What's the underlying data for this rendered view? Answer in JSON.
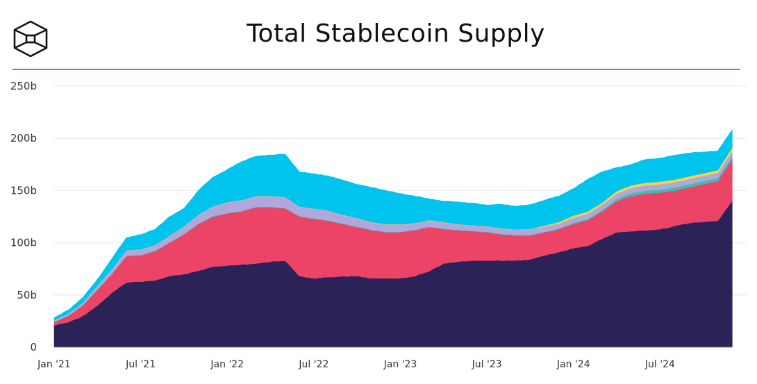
{
  "header": {
    "logo": "the-block-cube-logo",
    "title": "Total Stablecoin Supply",
    "divider_color": "#c04cf0"
  },
  "chart_data": {
    "type": "area",
    "stacked": true,
    "title": "Total Stablecoin Supply",
    "xlabel": "",
    "ylabel": "",
    "grid": true,
    "legend": "none",
    "x_start": "2021-01",
    "x_step": "month",
    "x": [
      "2021-01",
      "2021-02",
      "2021-03",
      "2021-04",
      "2021-05",
      "2021-06",
      "2021-07",
      "2021-08",
      "2021-09",
      "2021-10",
      "2021-11",
      "2021-12",
      "2022-01",
      "2022-02",
      "2022-03",
      "2022-04",
      "2022-05",
      "2022-06",
      "2022-07",
      "2022-08",
      "2022-09",
      "2022-10",
      "2022-11",
      "2022-12",
      "2023-01",
      "2023-02",
      "2023-03",
      "2023-04",
      "2023-05",
      "2023-06",
      "2023-07",
      "2023-08",
      "2023-09",
      "2023-10",
      "2023-11",
      "2023-12",
      "2024-01",
      "2024-02",
      "2024-03",
      "2024-04",
      "2024-05",
      "2024-06",
      "2024-07",
      "2024-08",
      "2024-09",
      "2024-10",
      "2024-11",
      "2024-12"
    ],
    "ylim": [
      0,
      250
    ],
    "yticks": [
      {
        "value": 0,
        "label": "0"
      },
      {
        "value": 50,
        "label": "50b"
      },
      {
        "value": 100,
        "label": "100b"
      },
      {
        "value": 150,
        "label": "150b"
      },
      {
        "value": 200,
        "label": "200b"
      },
      {
        "value": 250,
        "label": "250b"
      }
    ],
    "xticks": [
      {
        "index": 0,
        "label": "Jan '21"
      },
      {
        "index": 6,
        "label": "Jul '21"
      },
      {
        "index": 12,
        "label": "Jan '22"
      },
      {
        "index": 18,
        "label": "Jul '22"
      },
      {
        "index": 24,
        "label": "Jan '23"
      },
      {
        "index": 30,
        "label": "Jul '23"
      },
      {
        "index": 36,
        "label": "Jan '24"
      },
      {
        "index": 42,
        "label": "Jul '24"
      }
    ],
    "units": "billions USD",
    "series": [
      {
        "color": "#2b2358",
        "values": [
          21,
          24,
          30,
          40,
          52,
          62,
          63,
          64,
          68,
          70,
          73,
          77,
          78,
          79,
          80,
          82,
          83,
          68,
          66,
          67,
          68,
          68,
          66,
          66,
          66,
          68,
          73,
          80,
          82,
          83,
          83,
          83,
          83,
          84,
          88,
          91,
          95,
          97,
          104,
          110,
          111,
          112,
          113,
          116,
          119,
          120,
          121,
          140
        ]
      },
      {
        "color": "#ec4466",
        "values": [
          3,
          6,
          10,
          15,
          18,
          25,
          25,
          28,
          32,
          38,
          45,
          48,
          50,
          51,
          54,
          52,
          50,
          57,
          57,
          54,
          50,
          47,
          46,
          44,
          44,
          44,
          42,
          33,
          30,
          28,
          27,
          25,
          24,
          23,
          22,
          22,
          23,
          25,
          26,
          30,
          34,
          35,
          35,
          34,
          34,
          36,
          38,
          40
        ]
      },
      {
        "color": "#3fbfae",
        "values": [
          0.5,
          0.5,
          0.5,
          0.5,
          0.5,
          0.5,
          0.5,
          0.5,
          0.5,
          0.5,
          0.5,
          0.5,
          0.5,
          0.5,
          0.5,
          0.5,
          0.5,
          0.5,
          0.5,
          0.5,
          0.5,
          0.5,
          0.5,
          0.5,
          0.5,
          0.5,
          0.5,
          0.5,
          0.5,
          0.5,
          0.5,
          0.5,
          0.5,
          0.5,
          0.5,
          0.5,
          1,
          1,
          1.5,
          2,
          2.5,
          3,
          3,
          3,
          3,
          3,
          3,
          3
        ]
      },
      {
        "color": "#b0a8dc",
        "values": [
          1,
          1.5,
          2,
          3,
          4,
          5,
          5,
          5,
          6,
          7,
          8,
          9,
          10,
          10,
          10,
          10,
          10,
          9,
          9,
          9,
          8,
          8,
          7,
          7,
          7,
          6,
          6,
          6,
          5,
          5,
          5,
          5,
          5,
          5,
          5,
          5,
          5,
          5,
          5,
          5,
          5,
          5,
          5,
          5,
          5,
          5,
          5,
          5
        ]
      },
      {
        "color": "#f5d442",
        "values": [
          0.3,
          0.3,
          0.3,
          0.3,
          0.3,
          0.3,
          0.3,
          0.3,
          0.3,
          0.3,
          0.3,
          0.3,
          0.3,
          0.3,
          0.3,
          0.3,
          0.3,
          0.3,
          0.3,
          0.3,
          0.3,
          0.3,
          0.3,
          0.3,
          0.3,
          0.3,
          0.3,
          0.3,
          0.3,
          0.3,
          0.3,
          0.3,
          0.3,
          0.5,
          1,
          1.5,
          2,
          2,
          2,
          2.5,
          2.5,
          2.5,
          2.5,
          2.5,
          2.5,
          2.5,
          2.5,
          3
        ]
      },
      {
        "color": "#00c3ee",
        "values": [
          2.2,
          3.7,
          5.2,
          6.2,
          10.2,
          12.2,
          14.2,
          15.2,
          18.2,
          17.2,
          23.2,
          28.2,
          31.2,
          37.2,
          38.2,
          39.2,
          41.2,
          33.2,
          33.2,
          33.2,
          33.2,
          32.2,
          33.2,
          32.2,
          29.2,
          26.2,
          20.2,
          20.2,
          21.2,
          21.2,
          20.2,
          23.2,
          22.2,
          23.5,
          24.5,
          25,
          26,
          31,
          29.5,
          22.5,
          20,
          22.5,
          22.5,
          23.5,
          22.5,
          20.5,
          18.5,
          17
        ]
      }
    ]
  }
}
